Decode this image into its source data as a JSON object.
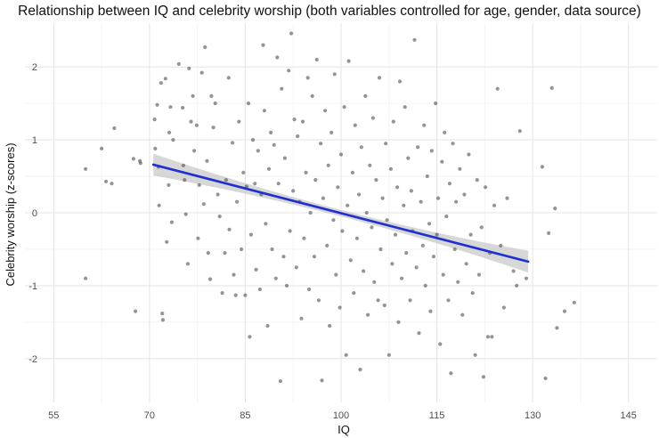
{
  "chart_data": {
    "type": "scatter",
    "title": "Relationship between IQ and celebrity worship (both variables controlled for age, gender, data source)",
    "xlabel": "IQ",
    "ylabel": "Celebrity worship (z-scores)",
    "xlim": [
      50.5,
      149.5
    ],
    "ylim": [
      -2.6,
      2.6
    ],
    "x_ticks": [
      55,
      70,
      85,
      100,
      115,
      130,
      145
    ],
    "y_ticks": [
      -2,
      -1,
      0,
      1,
      2
    ],
    "grid": true,
    "point_color": "#4d4d4d",
    "line_color": "#1f2fd1",
    "band_color": "#bdbdbd",
    "regression": {
      "x": [
        70.6,
        129.3
      ],
      "y": [
        0.66,
        -0.67
      ],
      "band_halfwidth_ends": 0.15,
      "band_halfwidth_center": 0.045
    },
    "points": [
      [
        60,
        0.6
      ],
      [
        60,
        -0.9
      ],
      [
        62.5,
        0.88
      ],
      [
        63.2,
        0.43
      ],
      [
        64.1,
        0.4
      ],
      [
        64.5,
        1.16
      ],
      [
        67.5,
        0.74
      ],
      [
        67.8,
        -1.35
      ],
      [
        68.5,
        0.71
      ],
      [
        68.6,
        0.68
      ],
      [
        70.8,
        1.28
      ],
      [
        70.9,
        0.88
      ],
      [
        71.2,
        1.48
      ],
      [
        71.4,
        0.63
      ],
      [
        71.5,
        0.1
      ],
      [
        71.8,
        1.78
      ],
      [
        72,
        -1.38
      ],
      [
        72.1,
        -1.47
      ],
      [
        72.5,
        1.84
      ],
      [
        72.7,
        -0.4
      ],
      [
        73,
        0.38
      ],
      [
        73.1,
        1.1
      ],
      [
        73.3,
        1.45
      ],
      [
        73.5,
        -0.13
      ],
      [
        73.7,
        1.0
      ],
      [
        74.6,
        2.04
      ],
      [
        75.2,
        1.44
      ],
      [
        75.3,
        0.65
      ],
      [
        75.5,
        0.45
      ],
      [
        75.7,
        -0.02
      ],
      [
        76,
        -0.7
      ],
      [
        76.2,
        1.98
      ],
      [
        76.5,
        1.25
      ],
      [
        76.8,
        1.6
      ],
      [
        77,
        0.85
      ],
      [
        77.4,
        1.2
      ],
      [
        77.6,
        -0.35
      ],
      [
        77.8,
        0.38
      ],
      [
        78.2,
        1.92
      ],
      [
        78.5,
        0.12
      ],
      [
        78.7,
        2.27
      ],
      [
        79,
        0.71
      ],
      [
        79.2,
        -0.55
      ],
      [
        79.5,
        -0.91
      ],
      [
        79.7,
        1.6
      ],
      [
        80,
        1.17
      ],
      [
        80.3,
        1.5
      ],
      [
        80.7,
        0.25
      ],
      [
        81,
        -0.05
      ],
      [
        81.4,
        -1.1
      ],
      [
        81.8,
        -0.55
      ],
      [
        82,
        0.45
      ],
      [
        82.4,
        1.85
      ],
      [
        82.5,
        -0.23
      ],
      [
        83,
        0.96
      ],
      [
        83.2,
        -0.85
      ],
      [
        83.5,
        -1.13
      ],
      [
        83.7,
        0.15
      ],
      [
        84,
        1.25
      ],
      [
        84.4,
        -0.5
      ],
      [
        84.7,
        0.55
      ],
      [
        85,
        -1.13
      ],
      [
        85.2,
        0.36
      ],
      [
        85.5,
        1.5
      ],
      [
        85.7,
        -1.7
      ],
      [
        85.9,
        -0.3
      ],
      [
        86.2,
        1.0
      ],
      [
        86.5,
        0.4
      ],
      [
        86.7,
        -0.78
      ],
      [
        87,
        0.85
      ],
      [
        87.3,
        -1.05
      ],
      [
        87.5,
        0.25
      ],
      [
        87.8,
        2.3
      ],
      [
        88,
        1.4
      ],
      [
        88.2,
        -0.15
      ],
      [
        88.5,
        -1.55
      ],
      [
        88.7,
        0.6
      ],
      [
        89,
        1.1
      ],
      [
        89.2,
        -0.5
      ],
      [
        89.5,
        0.93
      ],
      [
        89.8,
        -0.9
      ],
      [
        90,
        2.13
      ],
      [
        90.2,
        0.4
      ],
      [
        90.5,
        -2.31
      ],
      [
        90.7,
        1.7
      ],
      [
        91,
        -0.6
      ],
      [
        91.2,
        0.75
      ],
      [
        91.5,
        -1.0
      ],
      [
        91.8,
        1.95
      ],
      [
        92,
        -0.25
      ],
      [
        92.2,
        2.46
      ],
      [
        92.5,
        0.3
      ],
      [
        92.7,
        1.28
      ],
      [
        93,
        -0.75
      ],
      [
        93.2,
        1.05
      ],
      [
        93.5,
        0.15
      ],
      [
        93.8,
        -1.45
      ],
      [
        94,
        1.25
      ],
      [
        94.2,
        -0.35
      ],
      [
        94.5,
        0.55
      ],
      [
        94.8,
        1.85
      ],
      [
        95,
        -1.05
      ],
      [
        95.2,
        0.0
      ],
      [
        95.5,
        1.6
      ],
      [
        95.8,
        -0.6
      ],
      [
        96,
        0.45
      ],
      [
        96.2,
        2.1
      ],
      [
        96.5,
        -1.2
      ],
      [
        96.8,
        0.95
      ],
      [
        97,
        -2.3
      ],
      [
        97.2,
        0.2
      ],
      [
        97.5,
        1.4
      ],
      [
        97.8,
        -0.45
      ],
      [
        98,
        0.65
      ],
      [
        98.2,
        -1.55
      ],
      [
        98.5,
        1.1
      ],
      [
        98.8,
        -0.1
      ],
      [
        99,
        1.9
      ],
      [
        99.2,
        -0.85
      ],
      [
        99.5,
        0.35
      ],
      [
        99.8,
        -1.3
      ],
      [
        100,
        0.8
      ],
      [
        100.2,
        -0.25
      ],
      [
        100.5,
        1.45
      ],
      [
        100.8,
        -1.95
      ],
      [
        101,
        0.1
      ],
      [
        101.2,
        2.08
      ],
      [
        101.5,
        -0.65
      ],
      [
        101.8,
        0.55
      ],
      [
        102,
        -1.1
      ],
      [
        102.2,
        1.2
      ],
      [
        102.5,
        -0.35
      ],
      [
        102.8,
        0.25
      ],
      [
        103,
        -2.15
      ],
      [
        103.2,
        0.9
      ],
      [
        103.5,
        -0.8
      ],
      [
        103.8,
        1.6
      ],
      [
        104,
        0.0
      ],
      [
        104.2,
        -1.4
      ],
      [
        104.5,
        0.65
      ],
      [
        104.8,
        -0.2
      ],
      [
        105,
        1.3
      ],
      [
        105.2,
        -0.95
      ],
      [
        105.5,
        0.45
      ],
      [
        105.8,
        -1.2
      ],
      [
        106,
        1.85
      ],
      [
        106.2,
        -0.5
      ],
      [
        106.5,
        0.2
      ],
      [
        106.8,
        -1.27
      ],
      [
        107,
        0.95
      ],
      [
        107.2,
        -0.1
      ],
      [
        107.5,
        -1.95
      ],
      [
        107.8,
        0.6
      ],
      [
        108,
        -0.7
      ],
      [
        108.2,
        1.25
      ],
      [
        108.5,
        -0.3
      ],
      [
        108.8,
        0.35
      ],
      [
        109,
        -1.5
      ],
      [
        109.2,
        1.8
      ],
      [
        109.5,
        -0.9
      ],
      [
        109.8,
        0.1
      ],
      [
        110,
        1.45
      ],
      [
        110.2,
        -0.55
      ],
      [
        110.5,
        0.75
      ],
      [
        110.8,
        -1.2
      ],
      [
        111,
        0.3
      ],
      [
        111.2,
        -0.25
      ],
      [
        111.5,
        2.37
      ],
      [
        111.8,
        -0.75
      ],
      [
        112,
        0.9
      ],
      [
        112.2,
        -1.65
      ],
      [
        112.5,
        0.15
      ],
      [
        112.8,
        -0.45
      ],
      [
        113,
        1.2
      ],
      [
        113.2,
        -1.0
      ],
      [
        113.5,
        0.5
      ],
      [
        113.8,
        -0.15
      ],
      [
        114,
        -1.35
      ],
      [
        114.2,
        0.85
      ],
      [
        114.5,
        -0.6
      ],
      [
        114.8,
        1.5
      ],
      [
        115,
        -0.3
      ],
      [
        115.2,
        0.2
      ],
      [
        115.5,
        -1.8
      ],
      [
        115.8,
        0.7
      ],
      [
        116,
        -0.85
      ],
      [
        116.2,
        1.1
      ],
      [
        116.5,
        -0.05
      ],
      [
        116.8,
        -1.2
      ],
      [
        117,
        0.4
      ],
      [
        117.2,
        -2.2
      ],
      [
        117.5,
        0.95
      ],
      [
        117.8,
        -0.5
      ],
      [
        118,
        0.15
      ],
      [
        118.3,
        -0.95
      ],
      [
        118.6,
        0.6
      ],
      [
        119,
        -1.4
      ],
      [
        119.3,
        0.25
      ],
      [
        119.6,
        -0.7
      ],
      [
        120,
        0.8
      ],
      [
        120.3,
        -0.3
      ],
      [
        120.6,
        -1.1
      ],
      [
        121,
        -1.95
      ],
      [
        121.3,
        0.45
      ],
      [
        121.6,
        -0.85
      ],
      [
        122,
        -0.2
      ],
      [
        122.3,
        -2.25
      ],
      [
        122.6,
        0.35
      ],
      [
        123,
        -1.7
      ],
      [
        123.3,
        -0.55
      ],
      [
        123.6,
        -1.7
      ],
      [
        124,
        0.1
      ],
      [
        124.5,
        1.7
      ],
      [
        125,
        -0.45
      ],
      [
        125.5,
        -1.3
      ],
      [
        126,
        0.2
      ],
      [
        127,
        -0.8
      ],
      [
        127.5,
        -1.0
      ],
      [
        128,
        1.12
      ],
      [
        129,
        -0.9
      ],
      [
        131.5,
        0.63
      ],
      [
        132,
        -2.27
      ],
      [
        132.5,
        -0.28
      ],
      [
        133,
        1.71
      ],
      [
        133.5,
        0.06
      ],
      [
        133.8,
        -1.58
      ],
      [
        135,
        -1.35
      ],
      [
        136.5,
        -1.23
      ]
    ]
  }
}
